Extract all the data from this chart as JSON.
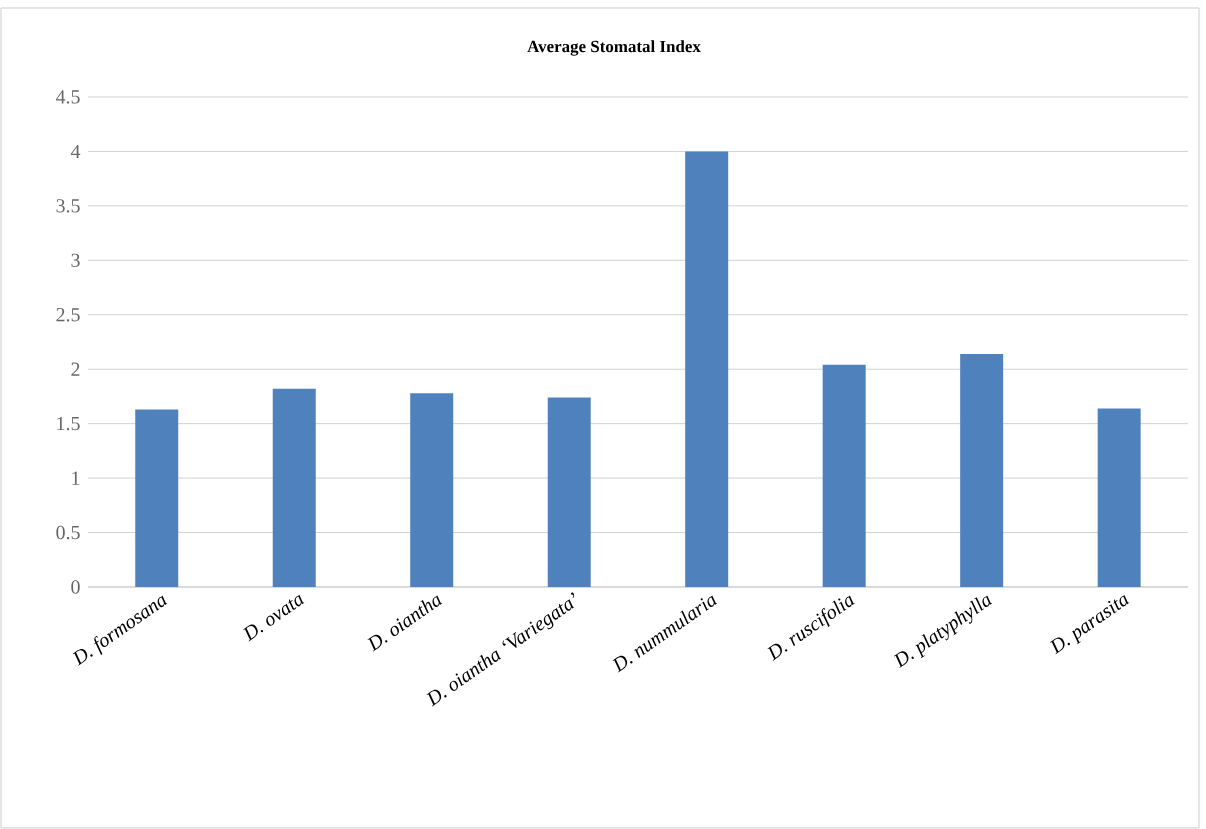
{
  "chart_data": {
    "type": "bar",
    "title": "Average Stomatal Index",
    "categories": [
      "D. formosana",
      "D. ovata",
      "D. oiantha",
      "D. oiantha ‘Variegata’",
      "D. nummularia",
      "D. ruscifolia",
      "D. platyphylla",
      "D. parasita"
    ],
    "values": [
      1.63,
      1.82,
      1.78,
      1.74,
      4.0,
      2.04,
      2.14,
      1.64
    ],
    "color": "#4f81bd",
    "ylim": [
      0,
      4.5
    ],
    "yticks": [
      0,
      0.5,
      1,
      1.5,
      2,
      2.5,
      3,
      3.5,
      4,
      4.5
    ],
    "grid": "y"
  }
}
